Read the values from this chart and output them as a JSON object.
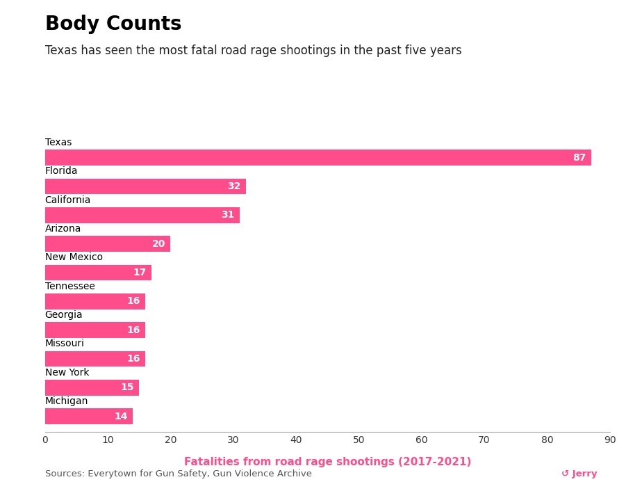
{
  "title": "Body Counts",
  "subtitle": "Texas has seen the most fatal road rage shootings in the past five years",
  "xlabel": "Fatalities from road rage shootings (2017-2021)",
  "source": "Sources: Everytown for Gun Safety, Gun Violence Archive",
  "jerry_label": "↺ Jerry",
  "categories": [
    "Texas",
    "Florida",
    "California",
    "Arizona",
    "New Mexico",
    "Tennessee",
    "Georgia",
    "Missouri",
    "New York",
    "Michigan"
  ],
  "values": [
    87,
    32,
    31,
    20,
    17,
    16,
    16,
    16,
    15,
    14
  ],
  "bar_color": "#FF4D8C",
  "label_color": "#FFFFFF",
  "title_color": "#000000",
  "subtitle_color": "#222222",
  "source_color": "#555555",
  "xlabel_color": "#FF4D8C",
  "background_color": "#FFFFFF",
  "xlim": [
    0,
    90
  ],
  "xticks": [
    0,
    10,
    20,
    30,
    40,
    50,
    60,
    70,
    80,
    90
  ],
  "bar_height": 0.55,
  "label_fontsize": 10,
  "cat_fontsize": 10,
  "title_fontsize": 20,
  "subtitle_fontsize": 12,
  "xlabel_fontsize": 11,
  "source_fontsize": 9.5
}
